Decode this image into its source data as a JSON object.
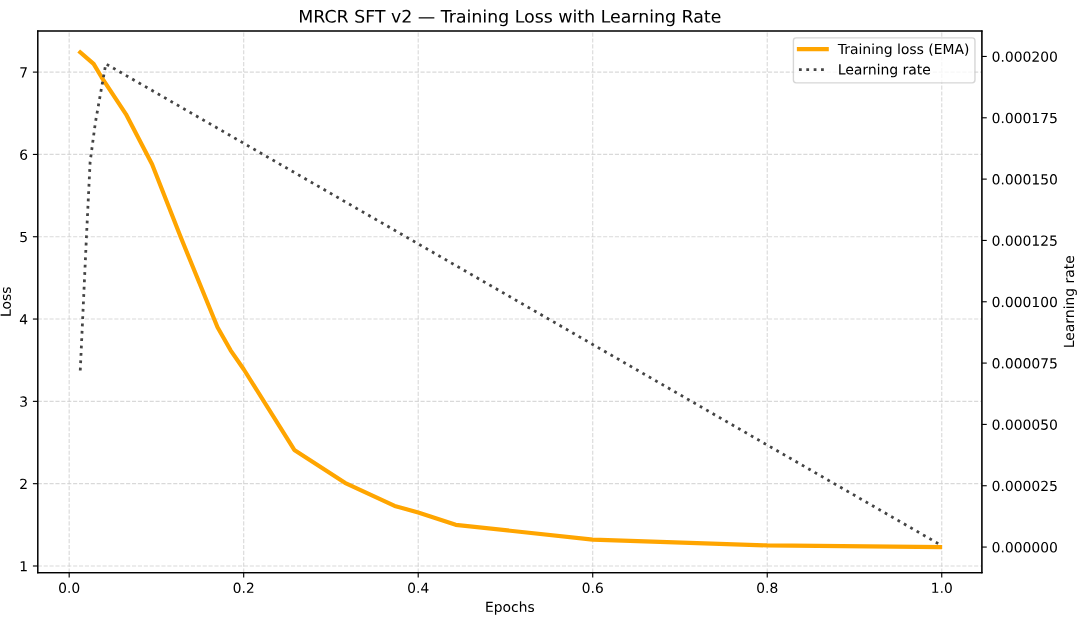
{
  "chart_data": {
    "type": "line",
    "title": "MRCR SFT v2 — Training Loss with Learning Rate",
    "xlabel": "Epochs",
    "ylabel": "Loss",
    "y2label": "Learning rate",
    "xlim": [
      -0.036,
      1.046
    ],
    "xticks": [
      {
        "value": 0.0,
        "label": "0.0"
      },
      0.2,
      0.4,
      0.6,
      0.8,
      {
        "value": 1.0,
        "label": "1.0"
      }
    ],
    "ylim": [
      0.92,
      7.5
    ],
    "yticks": [
      1,
      2,
      3,
      4,
      5,
      6,
      7
    ],
    "y2lim": [
      -1.04e-05,
      0.0002104
    ],
    "y2ticks": [
      {
        "value": 0,
        "label": "0.000000"
      },
      {
        "value": 2.5e-05,
        "label": "0.000025"
      },
      {
        "value": 5e-05,
        "label": "0.000050"
      },
      {
        "value": 7.5e-05,
        "label": "0.000075"
      },
      {
        "value": 0.0001,
        "label": "0.000100"
      },
      {
        "value": 0.000125,
        "label": "0.000125"
      },
      {
        "value": 0.00015,
        "label": "0.000150"
      },
      {
        "value": 0.000175,
        "label": "0.000175"
      },
      {
        "value": 0.0002,
        "label": "0.000200"
      }
    ],
    "grid": true,
    "legend": "top right",
    "series": [
      {
        "name": "Training loss (EMA)",
        "color": "#ffa500",
        "line_style": "solid",
        "x": [
          0.0127,
          0.028,
          0.037,
          0.065,
          0.095,
          0.128,
          0.17,
          0.185,
          0.2,
          0.258,
          0.316,
          0.373,
          0.4,
          0.443,
          0.6,
          0.8,
          0.998
        ],
        "values": [
          7.24,
          7.1,
          6.94,
          6.49,
          5.88,
          4.99,
          3.9,
          3.62,
          3.39,
          2.41,
          2.01,
          1.73,
          1.65,
          1.5,
          1.32,
          1.25,
          1.23
        ]
      },
      {
        "name": "Learning rate",
        "color": "#444444",
        "line_style": "dotted",
        "axis": "y2",
        "x": [
          0.0127,
          0.02,
          0.024,
          0.03,
          0.042,
          0.998
        ],
        "values": [
          7.2e-05,
          0.000128,
          0.000157,
          0.000173,
          0.000197,
          1e-06
        ]
      }
    ]
  }
}
